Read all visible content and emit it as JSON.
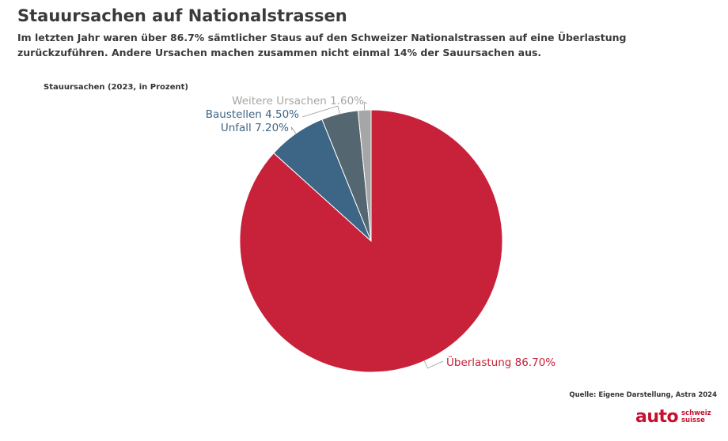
{
  "header": {
    "title": "Stauursachen auf Nationalstrassen",
    "subtitle": "Im letzten Jahr waren über 86.7% sämtlicher Staus auf den Schweizer Nationalstrassen auf eine Überlastung zurückzuführen. Andere Ursachen machen zusammen nicht einmal 14% der Sauursachen aus."
  },
  "chart_label": "Stauursachen (2023, in Prozent)",
  "chart_data": {
    "type": "pie",
    "title": "Stauursachen (2023, in Prozent)",
    "legend": "none",
    "slices": [
      {
        "name": "Überlastung",
        "value": 86.7,
        "label": "Überlastung 86.70%",
        "color": "#c8213a",
        "label_color": "#c8213a"
      },
      {
        "name": "Unfall",
        "value": 7.2,
        "label": "Unfall 7.20%",
        "color": "#3d6586",
        "label_color": "#3d6586"
      },
      {
        "name": "Baustellen",
        "value": 4.5,
        "label": "Baustellen 4.50%",
        "color": "#546670",
        "label_color": "#3d6586"
      },
      {
        "name": "Weitere Ursachen",
        "value": 1.6,
        "label": "Weitere Ursachen 1.60%",
        "color": "#a6a6a6",
        "label_color": "#a6a6a6"
      }
    ]
  },
  "footer": {
    "source": "Quelle: Eigene Darstellung, Astra 2024",
    "logo_main": "auto",
    "logo_line1": "schweiz",
    "logo_line2": "suisse"
  }
}
